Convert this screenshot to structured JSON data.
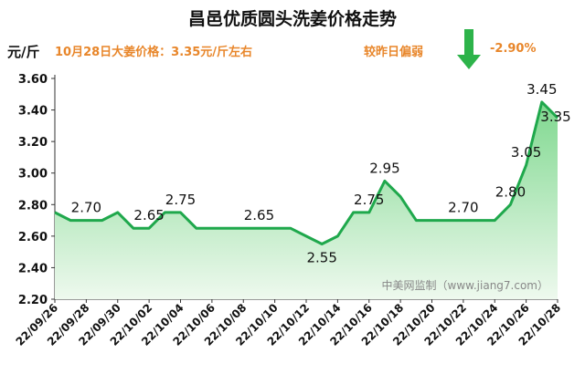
{
  "title": "昌邑优质圆头洗姜价格走势",
  "unit_label": "元/斤",
  "note": "10月28日大姜价格：3.35元/斤左右",
  "comparison": {
    "label": "较昨日偏弱",
    "value": "-2.90%",
    "arrow_color": "#2db34a",
    "direction": "down"
  },
  "watermark": "中美网监制（www.jiang7.com）",
  "colors": {
    "line": "#1fa84c",
    "fill_top": "#7fd88f",
    "fill_bottom": "#eef9ee",
    "accent": "#e8862a"
  },
  "chart_data": {
    "type": "area",
    "title": "昌邑优质圆头洗姜价格走势",
    "ylabel": "元/斤",
    "ylim": [
      2.2,
      3.6
    ],
    "yticks": [
      "2.20",
      "2.40",
      "2.60",
      "2.80",
      "3.00",
      "3.20",
      "3.40",
      "3.60"
    ],
    "grid": false,
    "x_ticklabels": [
      "22/09/26",
      "22/09/28",
      "22/09/30",
      "22/10/02",
      "22/10/04",
      "22/10/06",
      "22/10/08",
      "22/10/10",
      "22/10/12",
      "22/10/14",
      "22/10/16",
      "22/10/18",
      "22/10/20",
      "22/10/22",
      "22/10/24",
      "22/10/26",
      "22/10/28"
    ],
    "x": [
      "22/09/26",
      "22/09/27",
      "22/09/28",
      "22/09/29",
      "22/09/30",
      "22/10/01",
      "22/10/02",
      "22/10/03",
      "22/10/04",
      "22/10/05",
      "22/10/06",
      "22/10/07",
      "22/10/08",
      "22/10/09",
      "22/10/10",
      "22/10/11",
      "22/10/12",
      "22/10/13",
      "22/10/14",
      "22/10/15",
      "22/10/16",
      "22/10/17",
      "22/10/18",
      "22/10/19",
      "22/10/20",
      "22/10/21",
      "22/10/22",
      "22/10/23",
      "22/10/24",
      "22/10/25",
      "22/10/26",
      "22/10/27",
      "22/10/28"
    ],
    "values": [
      2.75,
      2.7,
      2.7,
      2.7,
      2.75,
      2.65,
      2.65,
      2.75,
      2.75,
      2.65,
      2.65,
      2.65,
      2.65,
      2.65,
      2.65,
      2.65,
      2.6,
      2.55,
      2.6,
      2.75,
      2.75,
      2.95,
      2.85,
      2.7,
      2.7,
      2.7,
      2.7,
      2.7,
      2.7,
      2.8,
      3.05,
      3.45,
      3.35
    ],
    "data_labels": [
      {
        "x": "22/09/28",
        "text": "2.70"
      },
      {
        "x": "22/10/02",
        "text": "2.65"
      },
      {
        "x": "22/10/04",
        "text": "2.75"
      },
      {
        "x": "22/10/09",
        "text": "2.65"
      },
      {
        "x": "22/10/13",
        "text": "2.55"
      },
      {
        "x": "22/10/16",
        "text": "2.75"
      },
      {
        "x": "22/10/17",
        "text": "2.95"
      },
      {
        "x": "22/10/22",
        "text": "2.70"
      },
      {
        "x": "22/10/25",
        "text": "2.80"
      },
      {
        "x": "22/10/26",
        "text": "3.05"
      },
      {
        "x": "22/10/27",
        "text": "3.45"
      },
      {
        "x": "22/10/28",
        "text": "3.35"
      }
    ]
  }
}
